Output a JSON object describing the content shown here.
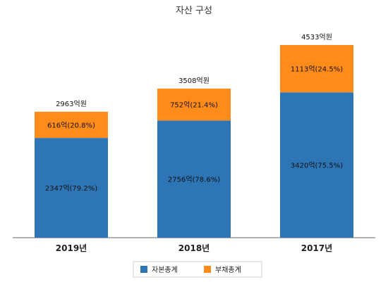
{
  "chart_data": {
    "type": "bar",
    "stacked": true,
    "title": "자산 구성",
    "categories": [
      "2019년",
      "2018년",
      "2017년"
    ],
    "series": [
      {
        "name": "자본총계",
        "color": "#2e75b6",
        "values": [
          2347,
          2756,
          3420
        ],
        "labels": [
          "2347억(79.2%)",
          "2756억(78.6%)",
          "3420억(75.5%)"
        ]
      },
      {
        "name": "부채총계",
        "color": "#ff8c1a",
        "values": [
          616,
          752,
          1113
        ],
        "labels": [
          "616억(20.8%)",
          "752억(21.4%)",
          "1113억(24.5%)"
        ]
      }
    ],
    "totals": [
      "2963억원",
      "3508억원",
      "4533억원"
    ],
    "ylim": [
      0,
      4533
    ],
    "grid": false,
    "legend_position": "bottom"
  }
}
